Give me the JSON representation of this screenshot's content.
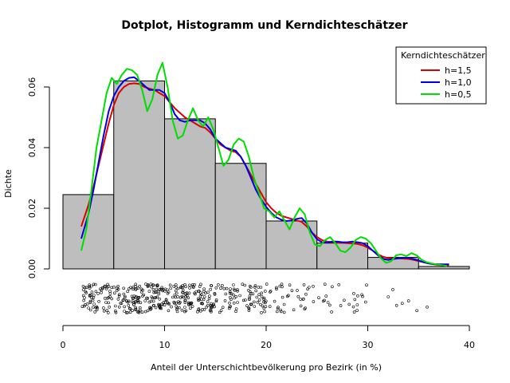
{
  "chart_data": {
    "type": "histogram",
    "title": "Dotplot, Histogramm und Kerndichteschätzer",
    "xlabel": "Anteil der Unterschichtbevölkerung pro Bezirk (in %)",
    "ylabel": "Dichte",
    "xlim": [
      0,
      40
    ],
    "ylim": [
      0,
      0.065
    ],
    "x_ticks": [
      "0",
      "10",
      "20",
      "30",
      "40"
    ],
    "y_ticks": [
      "0.00",
      "0.02",
      "0.04",
      "0.06"
    ],
    "x_tick_values": [
      0,
      10,
      20,
      30,
      40
    ],
    "y_tick_values": [
      0,
      0.02,
      0.04,
      0.06
    ],
    "bins": [
      {
        "x0": 0,
        "x1": 5,
        "density": 0.0245
      },
      {
        "x0": 5,
        "x1": 10,
        "density": 0.062
      },
      {
        "x0": 10,
        "x1": 15,
        "density": 0.0495
      },
      {
        "x0": 15,
        "x1": 20,
        "density": 0.0348
      },
      {
        "x0": 20,
        "x1": 25,
        "density": 0.0158
      },
      {
        "x0": 25,
        "x1": 30,
        "density": 0.0085
      },
      {
        "x0": 30,
        "x1": 35,
        "density": 0.0038
      },
      {
        "x0": 35,
        "x1": 40,
        "density": 0.0008
      }
    ],
    "legend": {
      "title": "Kerndichteschätzer",
      "placement": "top-right",
      "entries": [
        {
          "label": "h=1,5",
          "color": "#dd0000"
        },
        {
          "label": "h=1,0",
          "color": "#0000dd"
        },
        {
          "label": "h=0,5",
          "color": "#00dd00"
        }
      ]
    },
    "series": [
      {
        "color": "#dd0000",
        "x": [
          1.8,
          2.5,
          3.0,
          3.5,
          4.0,
          4.5,
          5.0,
          5.5,
          6.0,
          6.5,
          7.0,
          7.5,
          8.0,
          8.5,
          9.0,
          9.5,
          10.0,
          10.5,
          11.0,
          11.5,
          12.0,
          12.5,
          13.0,
          13.5,
          14.0,
          14.5,
          15.0,
          15.5,
          16.0,
          16.5,
          17.0,
          17.5,
          18.0,
          18.5,
          19.0,
          19.5,
          20.0,
          20.5,
          21.0,
          21.5,
          22.0,
          22.5,
          23.0,
          23.5,
          24.0,
          24.5,
          25.0,
          25.5,
          26.0,
          26.5,
          27.0,
          27.5,
          28.0,
          28.5,
          29.0,
          29.5,
          30.0,
          30.5,
          31.0,
          31.5,
          32.0,
          32.5,
          33.0,
          33.5,
          34.0,
          34.5,
          35.0,
          35.5,
          36.0,
          36.5,
          37.0,
          37.5,
          38.0
        ],
        "y": [
          0.014,
          0.021,
          0.027,
          0.034,
          0.041,
          0.048,
          0.054,
          0.058,
          0.06,
          0.061,
          0.0612,
          0.061,
          0.06,
          0.0595,
          0.059,
          0.058,
          0.057,
          0.055,
          0.053,
          0.0515,
          0.05,
          0.049,
          0.048,
          0.047,
          0.0465,
          0.045,
          0.043,
          0.041,
          0.04,
          0.039,
          0.0385,
          0.037,
          0.034,
          0.031,
          0.028,
          0.025,
          0.022,
          0.02,
          0.0185,
          0.0175,
          0.017,
          0.0165,
          0.016,
          0.0155,
          0.014,
          0.012,
          0.0105,
          0.0095,
          0.009,
          0.0088,
          0.0087,
          0.0086,
          0.0085,
          0.0084,
          0.0082,
          0.0078,
          0.007,
          0.006,
          0.0048,
          0.004,
          0.0036,
          0.0035,
          0.0035,
          0.0034,
          0.0033,
          0.003,
          0.0026,
          0.0022,
          0.0018,
          0.0015,
          0.0013,
          0.0012,
          0.0012
        ]
      },
      {
        "color": "#0000dd",
        "x": [
          1.8,
          2.5,
          3.0,
          3.5,
          4.0,
          4.5,
          5.0,
          5.5,
          6.0,
          6.5,
          7.0,
          7.5,
          8.0,
          8.5,
          9.0,
          9.5,
          10.0,
          10.5,
          11.0,
          11.5,
          12.0,
          12.5,
          13.0,
          13.5,
          14.0,
          14.5,
          15.0,
          15.5,
          16.0,
          16.5,
          17.0,
          17.5,
          18.0,
          18.5,
          19.0,
          19.5,
          20.0,
          20.5,
          21.0,
          21.5,
          22.0,
          22.5,
          23.0,
          23.5,
          24.0,
          24.5,
          25.0,
          25.5,
          26.0,
          26.5,
          27.0,
          27.5,
          28.0,
          28.5,
          29.0,
          29.5,
          30.0,
          30.5,
          31.0,
          31.5,
          32.0,
          32.5,
          33.0,
          33.5,
          34.0,
          34.5,
          35.0,
          35.5,
          36.0,
          36.5,
          37.0,
          37.5,
          38.0
        ],
        "y": [
          0.01,
          0.018,
          0.026,
          0.035,
          0.044,
          0.052,
          0.057,
          0.06,
          0.062,
          0.063,
          0.0632,
          0.062,
          0.0605,
          0.059,
          0.059,
          0.059,
          0.058,
          0.055,
          0.051,
          0.049,
          0.0485,
          0.049,
          0.049,
          0.049,
          0.048,
          0.046,
          0.043,
          0.0415,
          0.04,
          0.0395,
          0.039,
          0.037,
          0.034,
          0.03,
          0.026,
          0.023,
          0.0205,
          0.0185,
          0.017,
          0.0162,
          0.0158,
          0.016,
          0.0165,
          0.0168,
          0.015,
          0.012,
          0.0098,
          0.0088,
          0.0087,
          0.009,
          0.009,
          0.0088,
          0.0088,
          0.009,
          0.0088,
          0.0085,
          0.0075,
          0.006,
          0.0045,
          0.0033,
          0.003,
          0.0032,
          0.0035,
          0.0036,
          0.0036,
          0.0033,
          0.0028,
          0.0022,
          0.0018,
          0.0016,
          0.0015,
          0.0015,
          0.0015
        ]
      },
      {
        "color": "#00dd00",
        "x": [
          1.8,
          2.3,
          2.8,
          3.3,
          3.8,
          4.3,
          4.8,
          5.3,
          5.8,
          6.3,
          6.8,
          7.3,
          7.8,
          8.3,
          8.8,
          9.3,
          9.8,
          10.3,
          10.8,
          11.3,
          11.8,
          12.3,
          12.8,
          13.3,
          13.8,
          14.3,
          14.8,
          15.3,
          15.8,
          16.3,
          16.8,
          17.3,
          17.8,
          18.3,
          18.8,
          19.3,
          19.8,
          20.3,
          20.8,
          21.3,
          21.8,
          22.3,
          22.8,
          23.3,
          23.8,
          24.3,
          24.8,
          25.3,
          25.8,
          26.3,
          26.8,
          27.3,
          27.8,
          28.3,
          28.8,
          29.3,
          29.8,
          30.3,
          30.8,
          31.3,
          31.8,
          32.3,
          32.8,
          33.3,
          33.8,
          34.3,
          34.8,
          35.3,
          35.8,
          36.3,
          36.8,
          37.3,
          37.8
        ],
        "y": [
          0.006,
          0.013,
          0.026,
          0.04,
          0.049,
          0.058,
          0.063,
          0.061,
          0.064,
          0.066,
          0.0655,
          0.064,
          0.059,
          0.052,
          0.056,
          0.064,
          0.068,
          0.06,
          0.049,
          0.043,
          0.044,
          0.049,
          0.053,
          0.049,
          0.047,
          0.05,
          0.046,
          0.04,
          0.034,
          0.036,
          0.041,
          0.043,
          0.042,
          0.037,
          0.03,
          0.025,
          0.02,
          0.019,
          0.017,
          0.019,
          0.016,
          0.013,
          0.017,
          0.02,
          0.018,
          0.012,
          0.008,
          0.0075,
          0.0095,
          0.0105,
          0.0085,
          0.006,
          0.0055,
          0.007,
          0.0095,
          0.0105,
          0.01,
          0.0085,
          0.006,
          0.0035,
          0.002,
          0.0025,
          0.0045,
          0.0048,
          0.0042,
          0.0052,
          0.0045,
          0.003,
          0.0022,
          0.0018,
          0.0015,
          0.0012,
          0.001
        ]
      }
    ],
    "dotplot": {
      "n": 480
    }
  }
}
